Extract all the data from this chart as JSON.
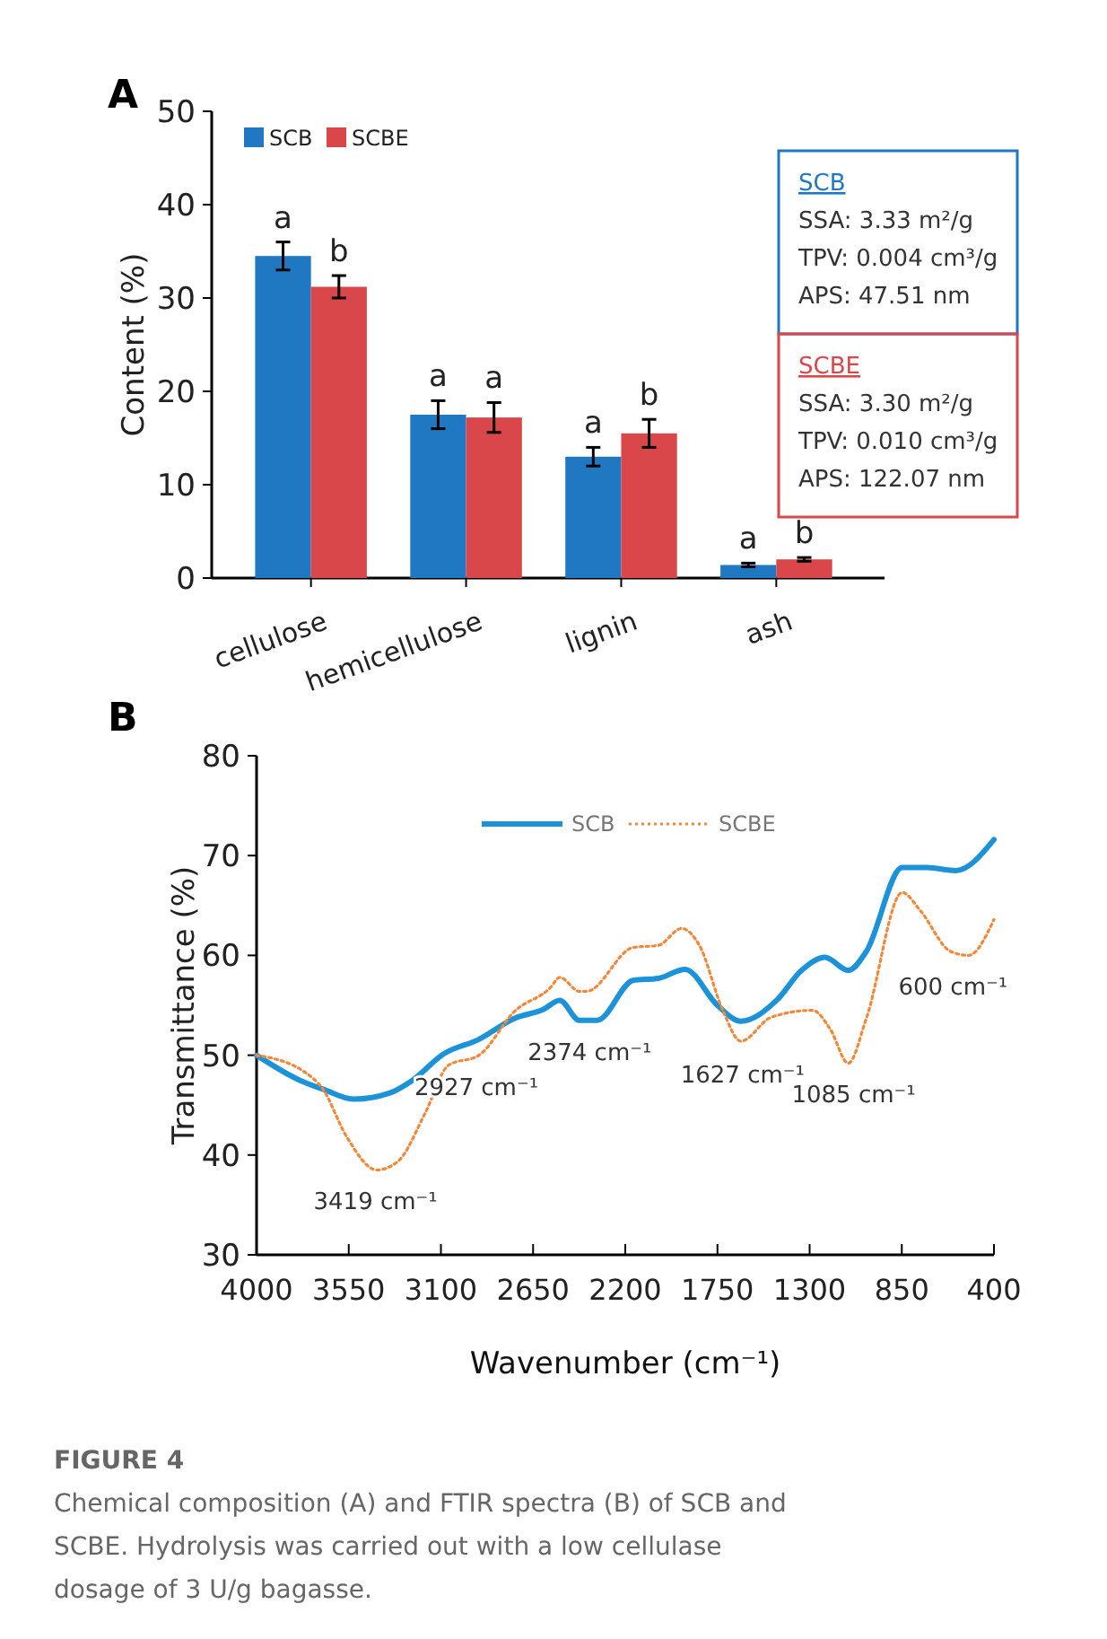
{
  "chart_data": [
    {
      "type": "bar",
      "title": "A",
      "ylabel": "Content (%)",
      "categories": [
        "cellulose",
        "hemicellulose",
        "lignin",
        "ash"
      ],
      "ylim": [
        0,
        50
      ],
      "yticks": [
        0,
        10,
        20,
        30,
        40,
        50
      ],
      "legend": "top left",
      "series": [
        {
          "name": "SCB",
          "color": "#1f78c1",
          "values": [
            34.5,
            17.5,
            13.0,
            1.4
          ],
          "errors": [
            1.5,
            1.5,
            1.0,
            0.2
          ]
        },
        {
          "name": "SCBE",
          "color": "#d9474a",
          "values": [
            31.2,
            17.2,
            15.5,
            2.0
          ],
          "errors": [
            1.2,
            1.6,
            1.5,
            0.2
          ]
        }
      ],
      "annotations": [
        "a",
        "b",
        "a",
        "a",
        "a",
        "b",
        "a",
        "b",
        "SCB\nSSA: 3.33 m²/g\nTPV: 0.004 cm³/g\nAPS: 47.51 nm",
        "SCBE\nSSA: 3.30 m²/g\nTPV: 0.010 cm³/g\nAPS: 122.07 nm"
      ]
    },
    {
      "type": "line",
      "title": "B",
      "xlabel": "Wavenumber (cm⁻¹)",
      "ylabel": "Transmittance (%)",
      "xlim": [
        4000,
        400
      ],
      "xticks": [
        4000,
        3550,
        3100,
        2650,
        2200,
        1750,
        1300,
        850,
        400
      ],
      "ylim": [
        30,
        80
      ],
      "yticks": [
        30,
        40,
        50,
        60,
        70,
        80
      ],
      "legend": "top",
      "series": [
        {
          "name": "SCB",
          "color": "#1c93d8",
          "line_style": "solid",
          "x": [
            4000,
            3790,
            3676,
            3527,
            3352,
            3238,
            3089,
            2914,
            2740,
            2599,
            2520,
            2424,
            2337,
            2161,
            2039,
            1908,
            1750,
            1636,
            1461,
            1339,
            1225,
            1111,
            1023,
            848,
            726,
            586,
            400
          ],
          "values": [
            50.0,
            47.5,
            46.6,
            45.6,
            46.2,
            47.5,
            50.1,
            51.6,
            53.7,
            54.6,
            55.5,
            53.5,
            53.5,
            57.5,
            57.7,
            58.6,
            55.0,
            53.4,
            55.5,
            58.5,
            59.8,
            58.5,
            60.4,
            68.8,
            68.8,
            68.5,
            71.6
          ]
        },
        {
          "name": "SCBE",
          "color": "#f4883a",
          "line_style": "dotted",
          "x": [
            4000,
            3764,
            3676,
            3562,
            3413,
            3308,
            3177,
            3063,
            2914,
            2740,
            2564,
            2520,
            2424,
            2389,
            2161,
            2039,
            1925,
            1838,
            1724,
            1636,
            1488,
            1286,
            1199,
            1111,
            1023,
            848,
            760,
            612,
            524,
            400
          ],
          "values": [
            50.0,
            48.3,
            46.6,
            41.9,
            38.5,
            39.4,
            44.2,
            49.0,
            50.0,
            54.4,
            56.8,
            57.8,
            56.4,
            56.4,
            60.8,
            61.0,
            62.7,
            61.0,
            54.5,
            51.4,
            53.8,
            54.5,
            52.6,
            49.2,
            53.7,
            66.3,
            64.5,
            60.4,
            60.0,
            63.6
          ]
        }
      ],
      "annotations": [
        {
          "text": "3419 cm⁻¹",
          "x": 3419,
          "y": 38.5
        },
        {
          "text": "2927 cm⁻¹",
          "x": 2927,
          "y": 50
        },
        {
          "text": "2374 cm⁻¹",
          "x": 2374,
          "y": 53.5
        },
        {
          "text": "1627 cm⁻¹",
          "x": 1627,
          "y": 51.2
        },
        {
          "text": "1085 cm⁻¹",
          "x": 1085,
          "y": 49.2
        },
        {
          "text": "600 cm⁻¹",
          "x": 600,
          "y": 60
        },
        "FIGURE 4",
        "Chemical composition (A) and FTIR spectra (B) of SCB and SCBE. Hydrolysis was carried out with a low cellulase dosage of 3 U/g bagasse."
      ]
    }
  ]
}
